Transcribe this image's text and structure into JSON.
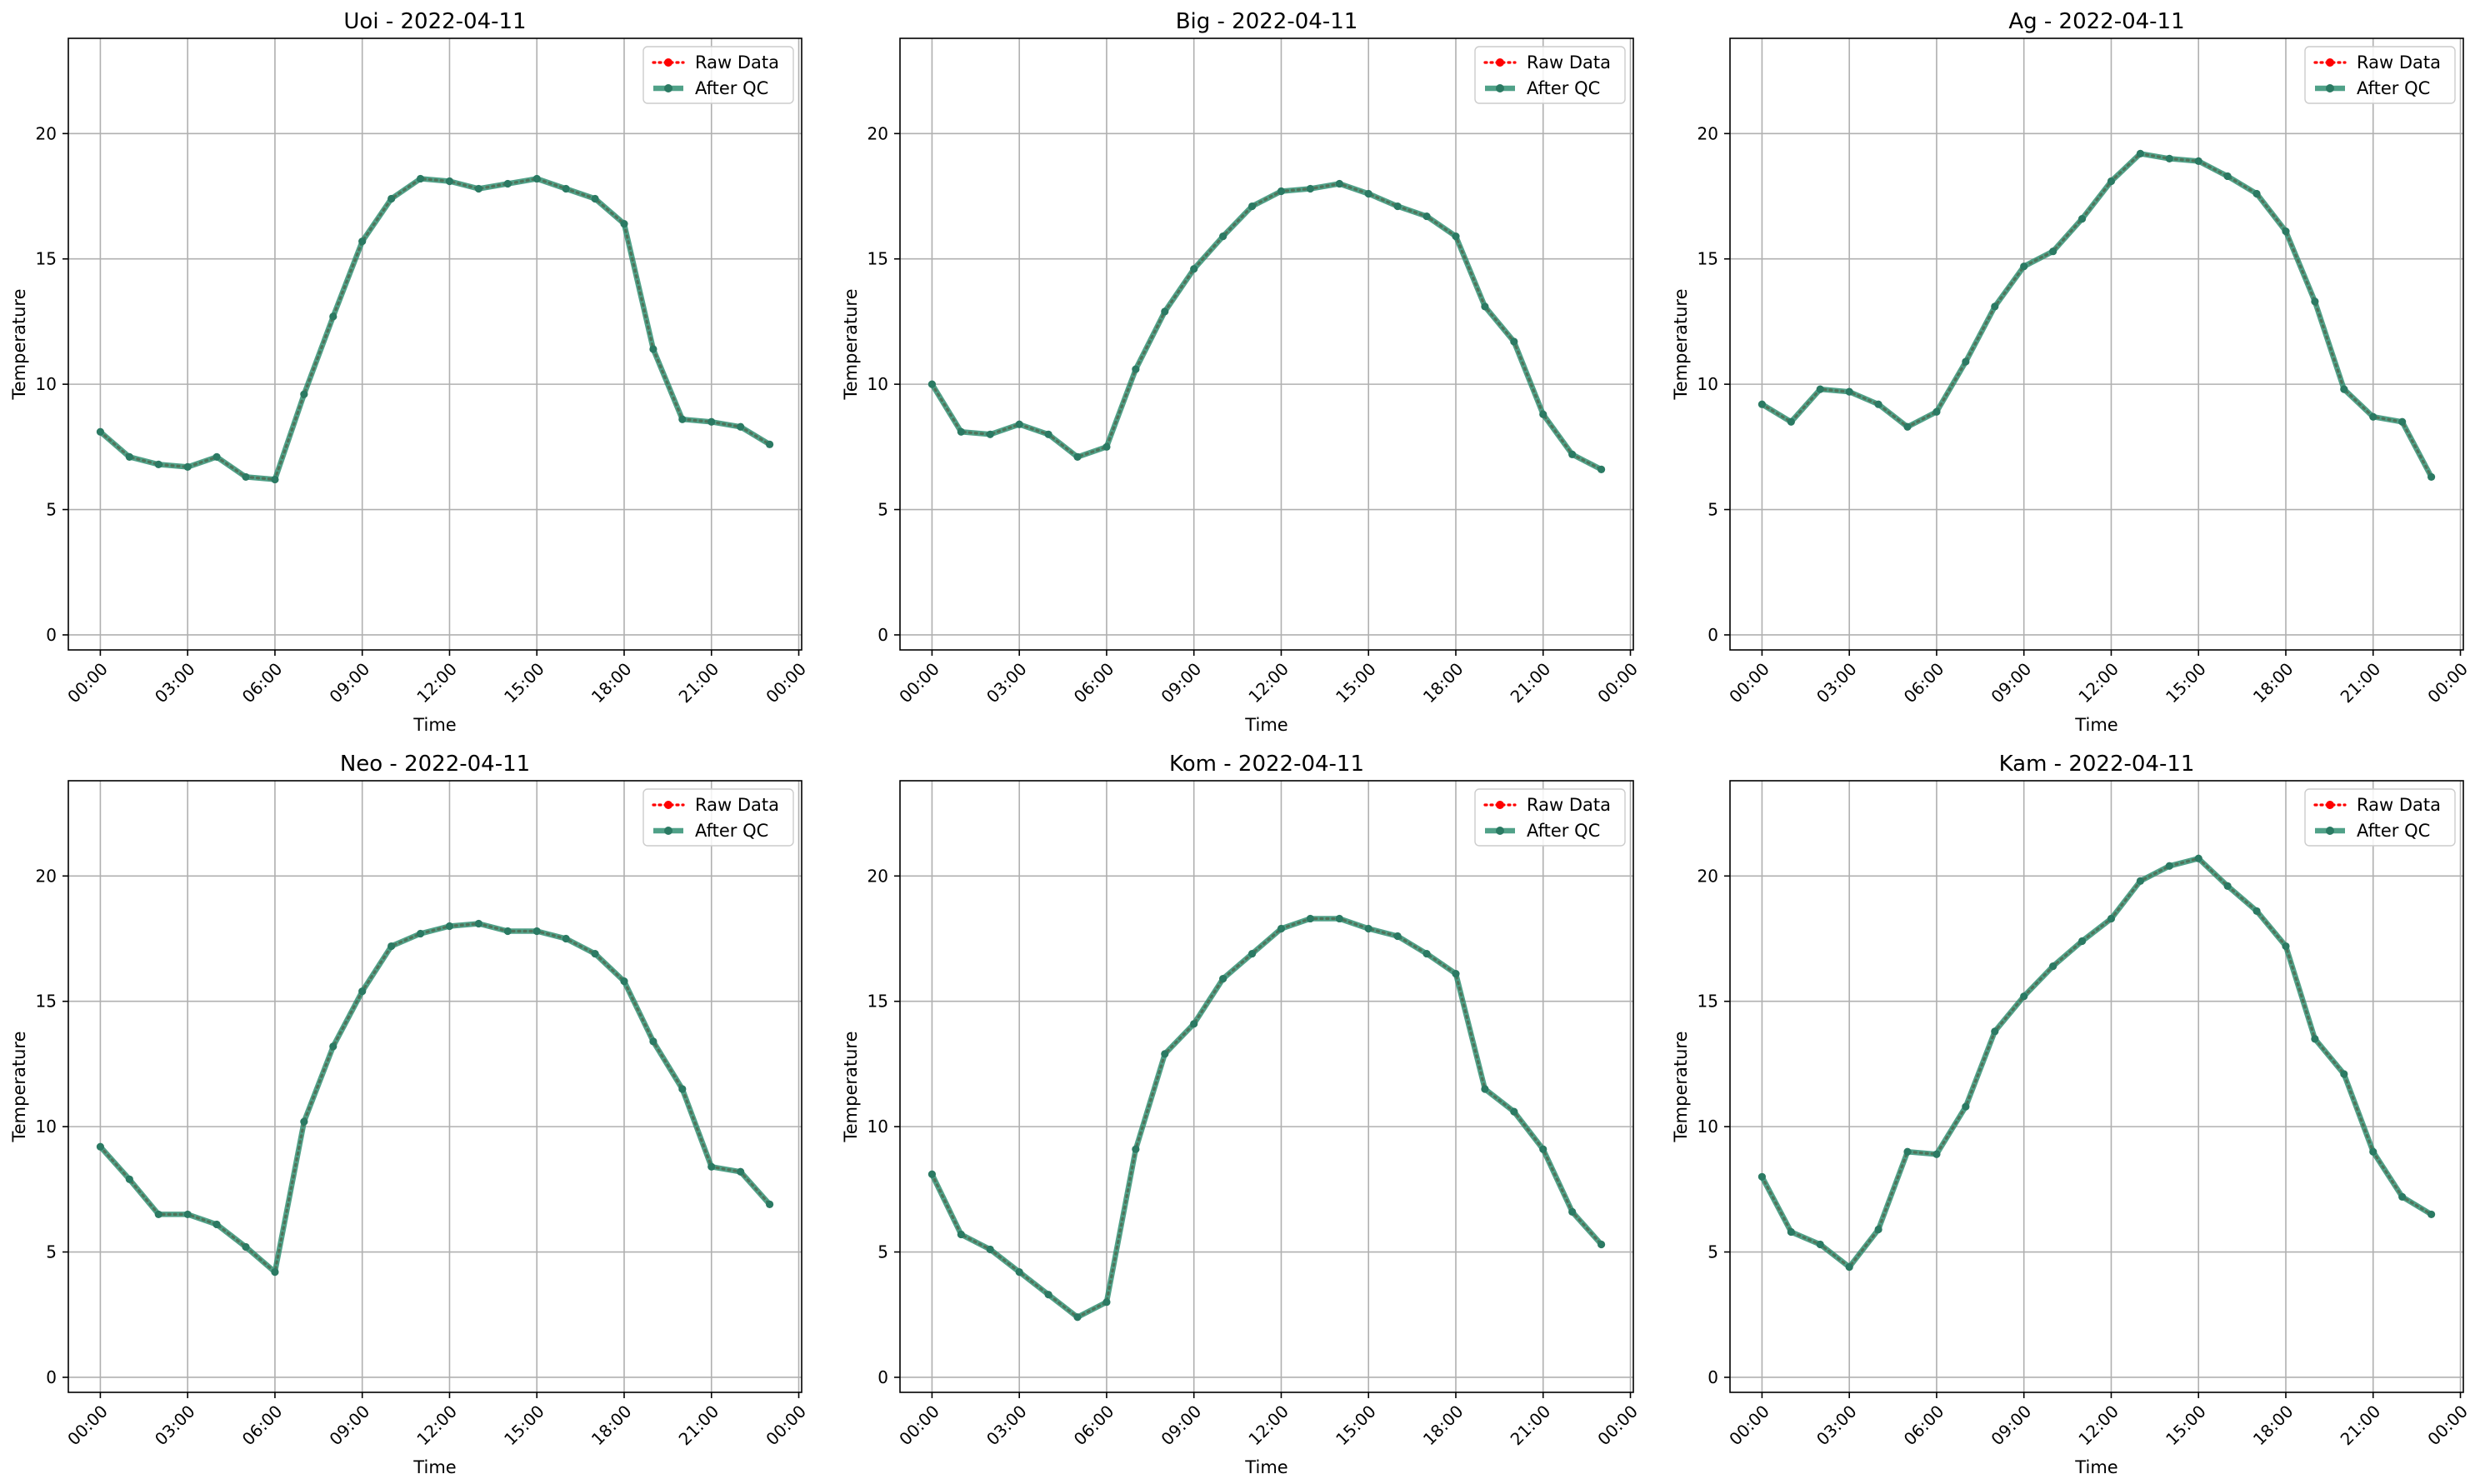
{
  "figure": {
    "background": "#ffffff",
    "raw_color": "#ff0000",
    "qc_color": "#2a8c6e"
  },
  "chart_data": [
    {
      "type": "line",
      "title": "Uoi - 2022-04-11",
      "xlabel": "Time",
      "ylabel": "Temperature",
      "xlim_hours": [
        -1.1,
        24.1
      ],
      "ylim": [
        -0.6,
        23.8
      ],
      "x_ticks": [
        "00:00",
        "03:00",
        "06:00",
        "09:00",
        "12:00",
        "15:00",
        "18:00",
        "21:00",
        "00:00"
      ],
      "y_ticks": [
        0,
        5,
        10,
        15,
        20
      ],
      "grid": true,
      "legend": {
        "position": "top-right",
        "entries": [
          "Raw Data",
          "After QC"
        ]
      },
      "x": [
        "00:00",
        "01:00",
        "02:00",
        "03:00",
        "04:00",
        "05:00",
        "06:00",
        "07:00",
        "08:00",
        "09:00",
        "10:00",
        "11:00",
        "12:00",
        "13:00",
        "14:00",
        "15:00",
        "16:00",
        "17:00",
        "18:00",
        "19:00",
        "20:00",
        "21:00",
        "22:00",
        "23:00"
      ],
      "series": [
        {
          "name": "Raw Data",
          "color": "#ff0000",
          "values": [
            8.1,
            7.1,
            6.8,
            6.7,
            7.1,
            6.3,
            6.2,
            9.6,
            12.7,
            15.7,
            17.4,
            18.2,
            18.1,
            17.8,
            18.0,
            18.2,
            17.8,
            17.4,
            16.4,
            11.4,
            8.6,
            8.5,
            8.3,
            7.6
          ]
        },
        {
          "name": "After QC",
          "color": "#2a8c6e",
          "values": [
            8.1,
            7.1,
            6.8,
            6.7,
            7.1,
            6.3,
            6.2,
            9.6,
            12.7,
            15.7,
            17.4,
            18.2,
            18.1,
            17.8,
            18.0,
            18.2,
            17.8,
            17.4,
            16.4,
            11.4,
            8.6,
            8.5,
            8.3,
            7.6
          ]
        }
      ]
    },
    {
      "type": "line",
      "title": "Big - 2022-04-11",
      "xlabel": "Time",
      "ylabel": "Temperature",
      "xlim_hours": [
        -1.1,
        24.1
      ],
      "ylim": [
        -0.6,
        23.8
      ],
      "x_ticks": [
        "00:00",
        "03:00",
        "06:00",
        "09:00",
        "12:00",
        "15:00",
        "18:00",
        "21:00",
        "00:00"
      ],
      "y_ticks": [
        0,
        5,
        10,
        15,
        20
      ],
      "grid": true,
      "legend": {
        "position": "top-right",
        "entries": [
          "Raw Data",
          "After QC"
        ]
      },
      "x": [
        "00:00",
        "01:00",
        "02:00",
        "03:00",
        "04:00",
        "05:00",
        "06:00",
        "07:00",
        "08:00",
        "09:00",
        "10:00",
        "11:00",
        "12:00",
        "13:00",
        "14:00",
        "15:00",
        "16:00",
        "17:00",
        "18:00",
        "19:00",
        "20:00",
        "21:00",
        "22:00",
        "23:00"
      ],
      "series": [
        {
          "name": "Raw Data",
          "color": "#ff0000",
          "values": [
            10.0,
            8.1,
            8.0,
            8.4,
            8.0,
            7.1,
            7.5,
            10.6,
            12.9,
            14.6,
            15.9,
            17.1,
            17.7,
            17.8,
            18.0,
            17.6,
            17.1,
            16.7,
            15.9,
            13.1,
            11.7,
            8.8,
            7.2,
            6.6
          ]
        },
        {
          "name": "After QC",
          "color": "#2a8c6e",
          "values": [
            10.0,
            8.1,
            8.0,
            8.4,
            8.0,
            7.1,
            7.5,
            10.6,
            12.9,
            14.6,
            15.9,
            17.1,
            17.7,
            17.8,
            18.0,
            17.6,
            17.1,
            16.7,
            15.9,
            13.1,
            11.7,
            8.8,
            7.2,
            6.6
          ]
        }
      ]
    },
    {
      "type": "line",
      "title": "Ag - 2022-04-11",
      "xlabel": "Time",
      "ylabel": "Temperature",
      "xlim_hours": [
        -1.1,
        24.1
      ],
      "ylim": [
        -0.6,
        23.8
      ],
      "x_ticks": [
        "00:00",
        "03:00",
        "06:00",
        "09:00",
        "12:00",
        "15:00",
        "18:00",
        "21:00",
        "00:00"
      ],
      "y_ticks": [
        0,
        5,
        10,
        15,
        20
      ],
      "grid": true,
      "legend": {
        "position": "top-right",
        "entries": [
          "Raw Data",
          "After QC"
        ]
      },
      "x": [
        "00:00",
        "01:00",
        "02:00",
        "03:00",
        "04:00",
        "05:00",
        "06:00",
        "07:00",
        "08:00",
        "09:00",
        "10:00",
        "11:00",
        "12:00",
        "13:00",
        "14:00",
        "15:00",
        "16:00",
        "17:00",
        "18:00",
        "19:00",
        "20:00",
        "21:00",
        "22:00",
        "23:00"
      ],
      "series": [
        {
          "name": "Raw Data",
          "color": "#ff0000",
          "values": [
            9.2,
            8.5,
            9.8,
            9.7,
            9.2,
            8.3,
            8.9,
            10.9,
            13.1,
            14.7,
            15.3,
            16.6,
            18.1,
            19.2,
            19.0,
            18.9,
            18.3,
            17.6,
            16.1,
            13.3,
            9.8,
            8.7,
            8.5,
            6.3
          ]
        },
        {
          "name": "After QC",
          "color": "#2a8c6e",
          "values": [
            9.2,
            8.5,
            9.8,
            9.7,
            9.2,
            8.3,
            8.9,
            10.9,
            13.1,
            14.7,
            15.3,
            16.6,
            18.1,
            19.2,
            19.0,
            18.9,
            18.3,
            17.6,
            16.1,
            13.3,
            9.8,
            8.7,
            8.5,
            6.3
          ]
        }
      ]
    },
    {
      "type": "line",
      "title": "Neo - 2022-04-11",
      "xlabel": "Time",
      "ylabel": "Temperature",
      "xlim_hours": [
        -1.1,
        24.1
      ],
      "ylim": [
        -0.6,
        23.8
      ],
      "x_ticks": [
        "00:00",
        "03:00",
        "06:00",
        "09:00",
        "12:00",
        "15:00",
        "18:00",
        "21:00",
        "00:00"
      ],
      "y_ticks": [
        0,
        5,
        10,
        15,
        20
      ],
      "grid": true,
      "legend": {
        "position": "top-right",
        "entries": [
          "Raw Data",
          "After QC"
        ]
      },
      "x": [
        "00:00",
        "01:00",
        "02:00",
        "03:00",
        "04:00",
        "05:00",
        "06:00",
        "07:00",
        "08:00",
        "09:00",
        "10:00",
        "11:00",
        "12:00",
        "13:00",
        "14:00",
        "15:00",
        "16:00",
        "17:00",
        "18:00",
        "19:00",
        "20:00",
        "21:00",
        "22:00",
        "23:00"
      ],
      "series": [
        {
          "name": "Raw Data",
          "color": "#ff0000",
          "values": [
            9.2,
            7.9,
            6.5,
            6.5,
            6.1,
            5.2,
            4.2,
            10.2,
            13.2,
            15.4,
            17.2,
            17.7,
            18.0,
            18.1,
            17.8,
            17.8,
            17.5,
            16.9,
            15.8,
            13.4,
            11.5,
            8.4,
            8.2,
            6.9
          ]
        },
        {
          "name": "After QC",
          "color": "#2a8c6e",
          "values": [
            9.2,
            7.9,
            6.5,
            6.5,
            6.1,
            5.2,
            4.2,
            10.2,
            13.2,
            15.4,
            17.2,
            17.7,
            18.0,
            18.1,
            17.8,
            17.8,
            17.5,
            16.9,
            15.8,
            13.4,
            11.5,
            8.4,
            8.2,
            6.9
          ]
        }
      ]
    },
    {
      "type": "line",
      "title": "Kom - 2022-04-11",
      "xlabel": "Time",
      "ylabel": "Temperature",
      "xlim_hours": [
        -1.1,
        24.1
      ],
      "ylim": [
        -0.6,
        23.8
      ],
      "x_ticks": [
        "00:00",
        "03:00",
        "06:00",
        "09:00",
        "12:00",
        "15:00",
        "18:00",
        "21:00",
        "00:00"
      ],
      "y_ticks": [
        0,
        5,
        10,
        15,
        20
      ],
      "grid": true,
      "legend": {
        "position": "top-right",
        "entries": [
          "Raw Data",
          "After QC"
        ]
      },
      "x": [
        "00:00",
        "01:00",
        "02:00",
        "03:00",
        "04:00",
        "05:00",
        "06:00",
        "07:00",
        "08:00",
        "09:00",
        "10:00",
        "11:00",
        "12:00",
        "13:00",
        "14:00",
        "15:00",
        "16:00",
        "17:00",
        "18:00",
        "19:00",
        "20:00",
        "21:00",
        "22:00",
        "23:00"
      ],
      "series": [
        {
          "name": "Raw Data",
          "color": "#ff0000",
          "values": [
            8.1,
            5.7,
            5.1,
            4.2,
            3.3,
            2.4,
            3.0,
            9.1,
            12.9,
            14.1,
            15.9,
            16.9,
            17.9,
            18.3,
            18.3,
            17.9,
            17.6,
            16.9,
            16.1,
            11.5,
            10.6,
            9.1,
            6.6,
            5.3
          ]
        },
        {
          "name": "After QC",
          "color": "#2a8c6e",
          "values": [
            8.1,
            5.7,
            5.1,
            4.2,
            3.3,
            2.4,
            3.0,
            9.1,
            12.9,
            14.1,
            15.9,
            16.9,
            17.9,
            18.3,
            18.3,
            17.9,
            17.6,
            16.9,
            16.1,
            11.5,
            10.6,
            9.1,
            6.6,
            5.3
          ]
        }
      ]
    },
    {
      "type": "line",
      "title": "Kam - 2022-04-11",
      "xlabel": "Time",
      "ylabel": "Temperature",
      "xlim_hours": [
        -1.1,
        24.1
      ],
      "ylim": [
        -0.6,
        23.8
      ],
      "x_ticks": [
        "00:00",
        "03:00",
        "06:00",
        "09:00",
        "12:00",
        "15:00",
        "18:00",
        "21:00",
        "00:00"
      ],
      "y_ticks": [
        0,
        5,
        10,
        15,
        20
      ],
      "grid": true,
      "legend": {
        "position": "top-right",
        "entries": [
          "Raw Data",
          "After QC"
        ]
      },
      "x": [
        "00:00",
        "01:00",
        "02:00",
        "03:00",
        "04:00",
        "05:00",
        "06:00",
        "07:00",
        "08:00",
        "09:00",
        "10:00",
        "11:00",
        "12:00",
        "13:00",
        "14:00",
        "15:00",
        "16:00",
        "17:00",
        "18:00",
        "19:00",
        "20:00",
        "21:00",
        "22:00",
        "23:00"
      ],
      "series": [
        {
          "name": "Raw Data",
          "color": "#ff0000",
          "values": [
            8.0,
            5.8,
            5.3,
            4.4,
            5.9,
            9.0,
            8.9,
            10.8,
            13.8,
            15.2,
            16.4,
            17.4,
            18.3,
            19.8,
            20.4,
            20.7,
            19.6,
            18.6,
            17.2,
            13.5,
            12.1,
            9.0,
            7.2,
            6.5
          ]
        },
        {
          "name": "After QC",
          "color": "#2a8c6e",
          "values": [
            8.0,
            5.8,
            5.3,
            4.4,
            5.9,
            9.0,
            8.9,
            10.8,
            13.8,
            15.2,
            16.4,
            17.4,
            18.3,
            19.8,
            20.4,
            20.7,
            19.6,
            18.6,
            17.2,
            13.5,
            12.1,
            9.0,
            7.2,
            6.5
          ]
        }
      ]
    }
  ]
}
